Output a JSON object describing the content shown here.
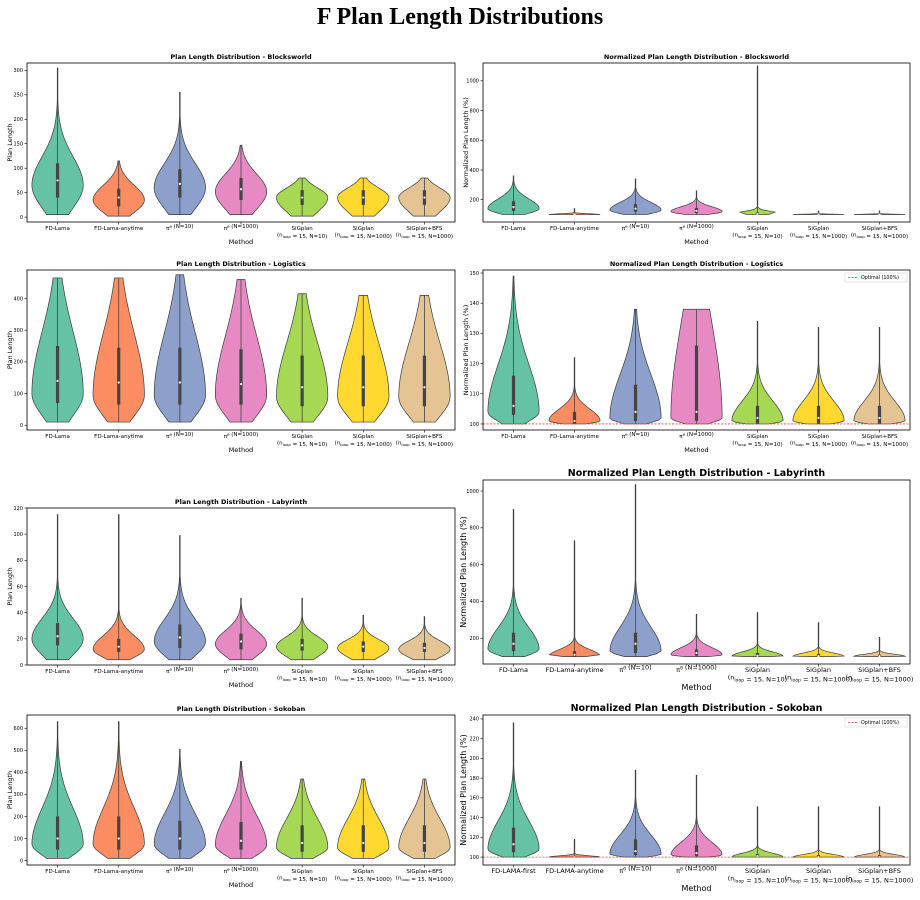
{
  "section_title": "F    Plan Length Distributions",
  "colors": [
    "#66c2a5",
    "#fc8d62",
    "#8da0cb",
    "#e78ac3",
    "#a6d854",
    "#ffd92f",
    "#e5c494"
  ],
  "chart_data": [
    {
      "type": "violin",
      "title": "Plan Length Distribution - Blocksworld",
      "xlabel": "Method",
      "ylabel": "Plan Length",
      "ylim": [
        -10,
        315
      ],
      "yticks": [
        0,
        50,
        100,
        150,
        200,
        250,
        300
      ],
      "categories": [
        "FD-Lama",
        "FD-Lama-anytime",
        "π^θ (N=10)",
        "π^θ (N=1000)",
        "SiGplan|(n_loop = 15, N=10)",
        "SiGplan|(n_loop = 15, N=1000)",
        "SiGplan+BFS|(n_loop = 15, N=1000)"
      ],
      "series": [
        {
          "min": 5,
          "q1": 40,
          "median": 75,
          "q3": 110,
          "max": 305,
          "peak": 65
        },
        {
          "min": 2,
          "q1": 22,
          "median": 40,
          "q3": 58,
          "max": 115,
          "peak": 35
        },
        {
          "min": 5,
          "q1": 40,
          "median": 68,
          "q3": 98,
          "max": 255,
          "peak": 60
        },
        {
          "min": 5,
          "q1": 35,
          "median": 57,
          "q3": 80,
          "max": 147,
          "peak": 52
        },
        {
          "min": 2,
          "q1": 25,
          "median": 40,
          "q3": 55,
          "max": 80,
          "peak": 40
        },
        {
          "min": 2,
          "q1": 25,
          "median": 40,
          "q3": 55,
          "max": 80,
          "peak": 40
        },
        {
          "min": 2,
          "q1": 25,
          "median": 40,
          "q3": 55,
          "max": 80,
          "peak": 40
        }
      ]
    },
    {
      "type": "violin",
      "title": "Normalized Plan Length Distribution - Blocksworld",
      "xlabel": "Method",
      "ylabel": "Normalized Plan Length (%)",
      "ylim": [
        50,
        1120
      ],
      "yticks": [
        200,
        400,
        600,
        800,
        1000
      ],
      "categories": [
        "FD-Lama",
        "FD-Lama-anytime",
        "π^θ (N=10)",
        "π^θ (N=1000)",
        "SiGplan|(n_loop = 15, N=10)",
        "SiGplan|(n_loop = 15, N=1000)",
        "SiGplan+BFS|(n_loop = 15, N=1000)"
      ],
      "series": [
        {
          "min": 100,
          "q1": 125,
          "median": 150,
          "q3": 190,
          "max": 360,
          "peak": 140
        },
        {
          "min": 100,
          "q1": 100,
          "median": 100,
          "q3": 104,
          "max": 140,
          "peak": 100
        },
        {
          "min": 100,
          "q1": 120,
          "median": 140,
          "q3": 170,
          "max": 340,
          "peak": 130
        },
        {
          "min": 100,
          "q1": 110,
          "median": 125,
          "q3": 145,
          "max": 260,
          "peak": 120
        },
        {
          "min": 100,
          "q1": 100,
          "median": 105,
          "q3": 115,
          "max": 1100,
          "peak": 103
        },
        {
          "min": 100,
          "q1": 100,
          "median": 100,
          "q3": 102,
          "max": 125,
          "peak": 100
        },
        {
          "min": 100,
          "q1": 100,
          "median": 100,
          "q3": 102,
          "max": 125,
          "peak": 100
        }
      ]
    },
    {
      "type": "violin",
      "title": "Plan Length Distribution - Logistics",
      "xlabel": "Method",
      "ylabel": "Plan Length",
      "ylim": [
        -15,
        490
      ],
      "yticks": [
        0,
        100,
        200,
        300,
        400
      ],
      "categories": [
        "FD-Lama",
        "FD-Lama-anytime",
        "π^θ (N=10)",
        "π^θ (N=1000)",
        "SiGplan|(n_loop = 15, N=10)",
        "SiGplan|(n_loop = 15, N=1000)",
        "SiGplan+BFS|(n_loop = 15, N=1000)"
      ],
      "series": [
        {
          "min": 10,
          "q1": 70,
          "median": 140,
          "q3": 250,
          "max": 465,
          "peak": 100
        },
        {
          "min": 10,
          "q1": 65,
          "median": 135,
          "q3": 245,
          "max": 465,
          "peak": 95
        },
        {
          "min": 10,
          "q1": 65,
          "median": 135,
          "q3": 245,
          "max": 475,
          "peak": 95
        },
        {
          "min": 10,
          "q1": 65,
          "median": 130,
          "q3": 240,
          "max": 460,
          "peak": 95
        },
        {
          "min": 10,
          "q1": 60,
          "median": 120,
          "q3": 220,
          "max": 415,
          "peak": 90
        },
        {
          "min": 10,
          "q1": 60,
          "median": 120,
          "q3": 220,
          "max": 410,
          "peak": 90
        },
        {
          "min": 10,
          "q1": 60,
          "median": 120,
          "q3": 220,
          "max": 410,
          "peak": 90
        }
      ]
    },
    {
      "type": "violin",
      "title": "Normalized Plan Length Distribution - Logistics",
      "xlabel": "Method",
      "ylabel": "Normalized Plan Length (%)",
      "ylim": [
        98,
        151
      ],
      "yticks": [
        100,
        110,
        120,
        130,
        140,
        150
      ],
      "legend": {
        "label": "Optimal (100%)",
        "location": "top-right"
      },
      "reference_line": 100,
      "categories": [
        "FD-Lama",
        "FD-Lama-anytime",
        "π^θ (N=10)",
        "π^θ (N=1000)",
        "SiGplan|(n_loop = 15, N=10)",
        "SiGplan|(n_loop = 15, N=1000)",
        "SiGplan+BFS|(n_loop = 15, N=1000)"
      ],
      "series": [
        {
          "min": 100,
          "q1": 103,
          "median": 106,
          "q3": 116,
          "max": 149,
          "peak": 104
        },
        {
          "min": 100,
          "q1": 100,
          "median": 101,
          "q3": 104,
          "max": 122,
          "peak": 101
        },
        {
          "min": 100,
          "q1": 101,
          "median": 104,
          "q3": 113,
          "max": 138,
          "peak": 102
        },
        {
          "min": 100,
          "q1": 101,
          "median": 104,
          "q3": 126,
          "max": 138,
          "peak": 102
        },
        {
          "min": 100,
          "q1": 100,
          "median": 102,
          "q3": 106,
          "max": 134,
          "peak": 101
        },
        {
          "min": 100,
          "q1": 100,
          "median": 102,
          "q3": 106,
          "max": 132,
          "peak": 101
        },
        {
          "min": 100,
          "q1": 100,
          "median": 102,
          "q3": 106,
          "max": 132,
          "peak": 101
        }
      ]
    },
    {
      "type": "violin",
      "title": "Plan Length Distribution - Labyrinth",
      "xlabel": "Method",
      "ylabel": "Plan Length",
      "ylim": [
        0,
        120
      ],
      "yticks": [
        0,
        20,
        40,
        60,
        80,
        100,
        120
      ],
      "categories": [
        "FD-Lama",
        "FD-Lama-anytime",
        "π^θ (N=10)",
        "π^θ (N=1000)",
        "SiGplan|(n_loop = 15, N=10)",
        "SiGplan|(n_loop = 15, N=1000)",
        "SiGplan+BFS|(n_loop = 15, N=1000)"
      ],
      "series": [
        {
          "min": 4,
          "q1": 15,
          "median": 22,
          "q3": 32,
          "max": 115,
          "peak": 20
        },
        {
          "min": 4,
          "q1": 10,
          "median": 14,
          "q3": 20,
          "max": 115,
          "peak": 12
        },
        {
          "min": 4,
          "q1": 13,
          "median": 21,
          "q3": 31,
          "max": 99,
          "peak": 18
        },
        {
          "min": 4,
          "q1": 12,
          "median": 18,
          "q3": 24,
          "max": 51,
          "peak": 16
        },
        {
          "min": 4,
          "q1": 11,
          "median": 15,
          "q3": 20,
          "max": 51,
          "peak": 14
        },
        {
          "min": 4,
          "q1": 10,
          "median": 14,
          "q3": 18,
          "max": 38,
          "peak": 13
        },
        {
          "min": 4,
          "q1": 10,
          "median": 13,
          "q3": 17,
          "max": 37,
          "peak": 12
        }
      ]
    },
    {
      "type": "violin",
      "title": "Normalized Plan Length Distribution - Labyrinth",
      "xlabel": "Method",
      "ylabel": "Normalized Plan Length (%)",
      "ylim": [
        60,
        1060
      ],
      "yticks": [
        200,
        400,
        600,
        800,
        1000
      ],
      "categories": [
        "FD-Lama",
        "FD-Lama-anytime",
        "π^θ (N=10)",
        "π^θ (N=1000)",
        "SiGplan|(n_loop = 15, N=10)",
        "SiGplan|(n_loop = 15, N=1000)",
        "SiGplan+BFS|(n_loop = 15, N=1000)"
      ],
      "series": [
        {
          "min": 100,
          "q1": 130,
          "median": 170,
          "q3": 230,
          "max": 900,
          "peak": 140
        },
        {
          "min": 100,
          "q1": 100,
          "median": 110,
          "q3": 130,
          "max": 730,
          "peak": 103
        },
        {
          "min": 100,
          "q1": 120,
          "median": 170,
          "q3": 230,
          "max": 1035,
          "peak": 130
        },
        {
          "min": 100,
          "q1": 105,
          "median": 120,
          "q3": 140,
          "max": 330,
          "peak": 110
        },
        {
          "min": 100,
          "q1": 100,
          "median": 105,
          "q3": 120,
          "max": 340,
          "peak": 102
        },
        {
          "min": 100,
          "q1": 100,
          "median": 103,
          "q3": 115,
          "max": 285,
          "peak": 101
        },
        {
          "min": 100,
          "q1": 100,
          "median": 102,
          "q3": 110,
          "max": 205,
          "peak": 101
        }
      ]
    },
    {
      "type": "violin",
      "title": "Plan Length Distribution - Sokoban",
      "xlabel": "Method",
      "ylabel": "Plan Length",
      "ylim": [
        -20,
        660
      ],
      "yticks": [
        0,
        100,
        200,
        300,
        400,
        500,
        600
      ],
      "categories": [
        "FD-Lama",
        "FD-Lama-anytime",
        "π^θ (N=10)",
        "π^θ (N=1000)",
        "SiGplan|(n_loop = 15, N=10)",
        "SiGplan|(n_loop = 15, N=1000)",
        "SiGplan+BFS|(n_loop = 15, N=1000)"
      ],
      "series": [
        {
          "min": 10,
          "q1": 50,
          "median": 100,
          "q3": 200,
          "max": 630,
          "peak": 75
        },
        {
          "min": 10,
          "q1": 50,
          "median": 100,
          "q3": 200,
          "max": 630,
          "peak": 75
        },
        {
          "min": 10,
          "q1": 50,
          "median": 100,
          "q3": 180,
          "max": 505,
          "peak": 75
        },
        {
          "min": 10,
          "q1": 50,
          "median": 90,
          "q3": 175,
          "max": 450,
          "peak": 70
        },
        {
          "min": 10,
          "q1": 40,
          "median": 80,
          "q3": 160,
          "max": 370,
          "peak": 60
        },
        {
          "min": 10,
          "q1": 40,
          "median": 80,
          "q3": 160,
          "max": 370,
          "peak": 60
        },
        {
          "min": 10,
          "q1": 40,
          "median": 80,
          "q3": 160,
          "max": 370,
          "peak": 60
        }
      ]
    },
    {
      "type": "violin",
      "title": "Normalized Plan Length Distribution - Sokoban",
      "xlabel": "Method",
      "ylabel": "Normalized Plan Length (%)",
      "ylim": [
        92,
        244
      ],
      "yticks": [
        100,
        120,
        140,
        160,
        180,
        200,
        220,
        240
      ],
      "legend": {
        "label": "Optimal (100%)",
        "location": "top-right"
      },
      "reference_line": 100,
      "categories": [
        "FD-LAMA-first",
        "FD-LAMA-anytime",
        "π^θ (N=10)",
        "π^θ (N=1000)",
        "SiGplan|(n_loop = 15, N=10)",
        "SiGplan|(n_loop = 15, N=1000)",
        "SiGplan+BFS|(n_loop = 15, N=1000)"
      ],
      "series": [
        {
          "min": 100,
          "q1": 105,
          "median": 113,
          "q3": 130,
          "max": 236,
          "peak": 108
        },
        {
          "min": 100,
          "q1": 100,
          "median": 100,
          "q3": 101,
          "max": 118,
          "peak": 100
        },
        {
          "min": 100,
          "q1": 102,
          "median": 106,
          "q3": 118,
          "max": 188,
          "peak": 103
        },
        {
          "min": 100,
          "q1": 101,
          "median": 104,
          "q3": 112,
          "max": 183,
          "peak": 102
        },
        {
          "min": 100,
          "q1": 100,
          "median": 101,
          "q3": 103,
          "max": 151,
          "peak": 100
        },
        {
          "min": 100,
          "q1": 100,
          "median": 100,
          "q3": 102,
          "max": 151,
          "peak": 100
        },
        {
          "min": 100,
          "q1": 100,
          "median": 100,
          "q3": 102,
          "max": 151,
          "peak": 100
        }
      ]
    }
  ]
}
